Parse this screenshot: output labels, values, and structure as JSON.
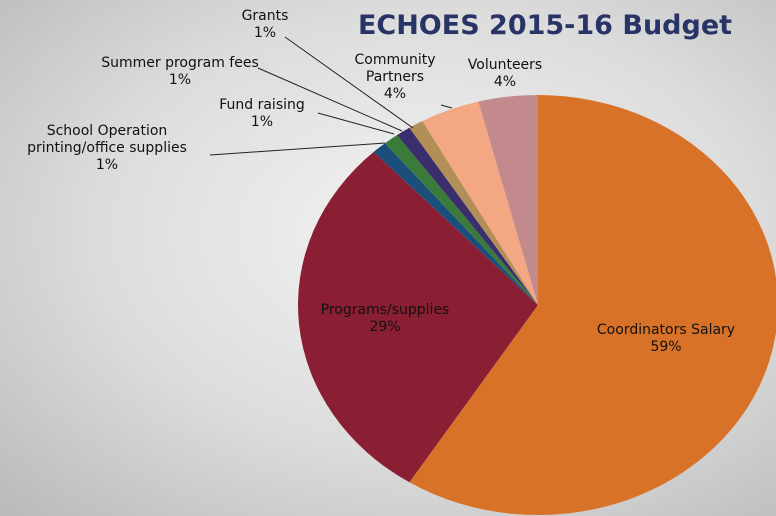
{
  "chart_data": {
    "type": "pie",
    "title": "ECHOES 2015-16 Budget",
    "categories": [
      "Coordinators Salary",
      "Programs/supplies",
      "School Operation printing/office supplies",
      "Fund raising",
      "Summer program fees",
      "Grants",
      "Community Partners",
      "Volunteers"
    ],
    "values": [
      59,
      29,
      1,
      1,
      1,
      1,
      4,
      4
    ],
    "value_labels": [
      "59%",
      "29%",
      "1%",
      "1%",
      "1%",
      "1%",
      "4%",
      "4%"
    ],
    "colors": [
      "#d87228",
      "#8a1f33",
      "#1b4f7b",
      "#3b7b3a",
      "#3a2f6c",
      "#b38f58",
      "#f3a883",
      "#c28a8c"
    ]
  }
}
